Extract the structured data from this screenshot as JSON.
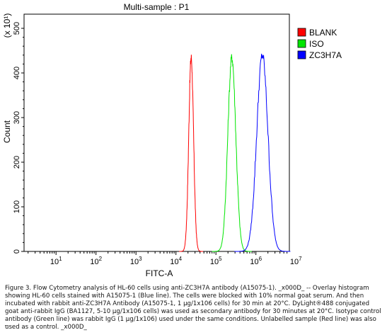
{
  "chart_data": {
    "type": "line",
    "title": "Multi-sample : P1",
    "xlabel": "FITC-A",
    "ylabel": "Count",
    "y_multiplier": "(x 10¹)",
    "xscale": "log",
    "xlim": [
      1,
      10000000
    ],
    "ylim": [
      0,
      500
    ],
    "x_ticks": [
      {
        "base": "10",
        "exp": "1"
      },
      {
        "base": "10",
        "exp": "2"
      },
      {
        "base": "10",
        "exp": "3"
      },
      {
        "base": "10",
        "exp": "4"
      },
      {
        "base": "10",
        "exp": "5"
      },
      {
        "base": "10",
        "exp": "6"
      },
      {
        "base": "10",
        "exp": "7"
      }
    ],
    "y_ticks": [
      "0",
      "100",
      "200",
      "300",
      "400",
      "500"
    ],
    "legend_position": "right",
    "series": [
      {
        "name": "BLANK",
        "color": "#ff0000",
        "peak_x": 24000,
        "peak_y": 435,
        "spread_log": 0.06
      },
      {
        "name": "ISO",
        "color": "#00e600",
        "peak_x": 250000,
        "peak_y": 435,
        "spread_log": 0.1
      },
      {
        "name": "ZC3H7A",
        "color": "#0000ff",
        "peak_x": 1450000,
        "peak_y": 440,
        "spread_log": 0.14
      }
    ]
  },
  "caption": {
    "text": "Figure 3. Flow Cytometry analysis of HL-60 cells using anti-ZC3H7A antibody (A15075-1). _x000D_ -- Overlay histogram showing HL-60 cells stained with A15075-1 (Blue line). The cells were blocked with 10% normal goat serum. And then incubated with rabbit anti-ZC3H7A Antibody (A15075-1, 1 μg/1x106 cells) for 30 min at 20°C. DyLight®488 conjugated goat anti-rabbit IgG (BA1127, 5-10 μg/1x106 cells) was used as secondary antibody for 30 minutes at 20°C. Isotype control antibody (Green line) was rabbit IgG (1 μg/1x106) used under the same conditions. Unlabelled sample (Red line) was also used as a control. _x000D_",
    "trailing": "_"
  }
}
